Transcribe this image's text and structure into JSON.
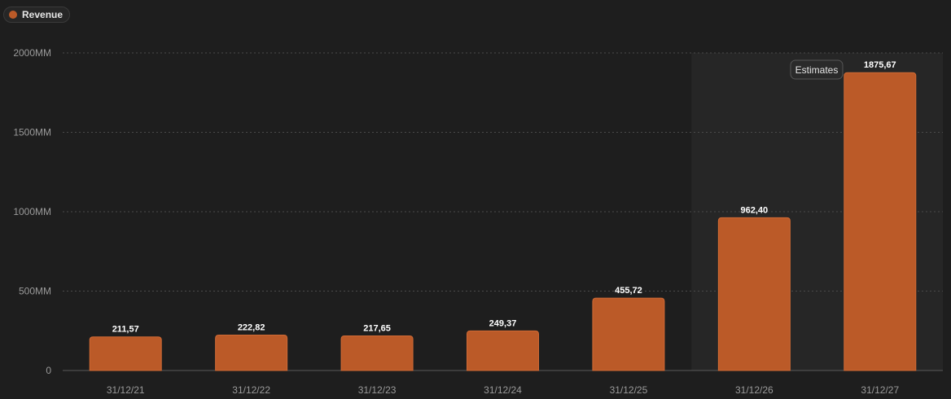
{
  "legend": {
    "label": "Revenue"
  },
  "colors": {
    "bar": "#bb5a28",
    "bar_border": "#d06a35",
    "estimate_bg": "#262626",
    "grid": "#4a4a4a"
  },
  "chart_data": {
    "type": "bar",
    "categories": [
      "31/12/21",
      "31/12/22",
      "31/12/23",
      "31/12/24",
      "31/12/25",
      "31/12/26",
      "31/12/27"
    ],
    "series": [
      {
        "name": "Revenue",
        "values": [
          211.57,
          222.82,
          217.65,
          249.37,
          455.72,
          962.4,
          1875.67
        ]
      }
    ],
    "data_labels": [
      "211,57",
      "222,82",
      "217,65",
      "249,37",
      "455,72",
      "962,40",
      "1875,67"
    ],
    "y_ticks": [
      "0",
      "500MM",
      "1000MM",
      "1500MM",
      "2000MM"
    ],
    "y_tick_values": [
      0,
      500,
      1000,
      1500,
      2000
    ],
    "ylim": [
      0,
      2000
    ],
    "grid": true,
    "legend_position": "top-left",
    "estimates": {
      "label": "Estimates",
      "from_category_index": 5
    }
  }
}
